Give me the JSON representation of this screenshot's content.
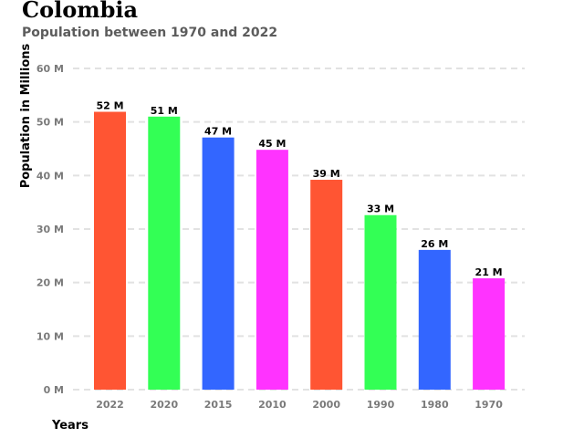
{
  "chart_data": {
    "type": "bar",
    "title": "Colombia",
    "subtitle": "Population between 1970 and 2022",
    "xlabel": "Years",
    "ylabel": "Population in Millions",
    "categories": [
      "2022",
      "2020",
      "2015",
      "2010",
      "2000",
      "1990",
      "1980",
      "1970"
    ],
    "values": [
      51.9,
      51.0,
      47.1,
      44.8,
      39.2,
      32.6,
      26.1,
      20.8
    ],
    "data_labels": [
      "52 M",
      "51 M",
      "47 M",
      "45 M",
      "39 M",
      "33 M",
      "26 M",
      "21 M"
    ],
    "colors": [
      "#ff5533",
      "#33ff55",
      "#3366ff",
      "#ff33ff",
      "#ff5533",
      "#33ff55",
      "#3366ff",
      "#ff33ff"
    ],
    "ylim": [
      0,
      60
    ],
    "yticks": [
      0,
      10,
      20,
      30,
      40,
      50,
      60
    ],
    "ytick_labels": [
      "0 M",
      "10 M",
      "20 M",
      "30 M",
      "40 M",
      "50 M",
      "60 M"
    ],
    "grid": true,
    "grid_style": "dashed",
    "legend": "none"
  }
}
